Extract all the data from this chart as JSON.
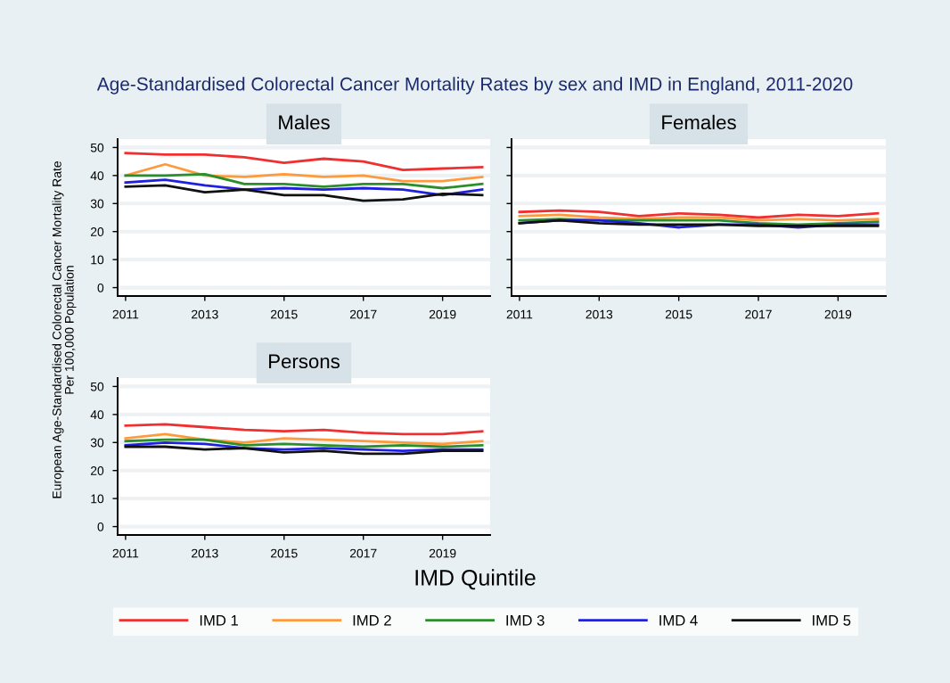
{
  "chart_data": [
    {
      "type": "line",
      "title": "Age-Standardised Colorectal Cancer Mortality Rates by sex and IMD in England, 2011-2020",
      "subtitle": "Males",
      "xlabel": "IMD Quintile",
      "ylabel": "European Age-Standardised Colorectal Cancer Mortality Rate\nPer 100,000 Population",
      "x": [
        2011,
        2012,
        2013,
        2014,
        2015,
        2016,
        2017,
        2018,
        2019,
        2020
      ],
      "xlim": [
        2010.8,
        2020.2
      ],
      "xticks": [
        2011,
        2013,
        2015,
        2017,
        2019
      ],
      "ylim": [
        -3,
        53
      ],
      "yticks": [
        0,
        10,
        20,
        30,
        40,
        50
      ],
      "grid": "y",
      "legend": "bottom",
      "series": [
        {
          "name": "IMD 1",
          "color": "#f03030",
          "values": [
            48,
            47.5,
            47.5,
            46.5,
            44.5,
            46,
            45,
            42,
            42.5,
            43
          ]
        },
        {
          "name": "IMD 2",
          "color": "#ff9a3c",
          "values": [
            40,
            44,
            40,
            39.5,
            40.5,
            39.5,
            40,
            38,
            38,
            39.5
          ]
        },
        {
          "name": "IMD 3",
          "color": "#2a8f2a",
          "values": [
            40,
            40,
            40.5,
            37,
            37,
            36,
            37,
            37,
            35.5,
            37
          ]
        },
        {
          "name": "IMD 4",
          "color": "#2020e0",
          "values": [
            37.5,
            38.5,
            36.5,
            35,
            35.5,
            35,
            35.5,
            35,
            33,
            35
          ]
        },
        {
          "name": "IMD 5",
          "color": "#111111",
          "values": [
            36,
            36.5,
            34,
            35,
            33,
            33,
            31,
            31.5,
            33.5,
            33
          ]
        }
      ]
    },
    {
      "type": "line",
      "subtitle": "Females",
      "x": [
        2011,
        2012,
        2013,
        2014,
        2015,
        2016,
        2017,
        2018,
        2019,
        2020
      ],
      "xlim": [
        2010.8,
        2020.2
      ],
      "xticks": [
        2011,
        2013,
        2015,
        2017,
        2019
      ],
      "ylim": [
        -3,
        53
      ],
      "yticks": [
        0,
        10,
        20,
        30,
        40,
        50
      ],
      "grid": "y",
      "tick_labels": "x",
      "series": [
        {
          "color": "#f03030",
          "values": [
            27,
            27.5,
            27,
            25.5,
            26.5,
            26,
            25,
            26,
            25.5,
            26.5
          ]
        },
        {
          "color": "#ff9a3c",
          "values": [
            25.5,
            26,
            25,
            24.5,
            25,
            25,
            24,
            24.5,
            24,
            24.5
          ]
        },
        {
          "color": "#2a8f2a",
          "values": [
            24,
            24.5,
            24,
            24,
            24,
            24,
            23,
            22.5,
            23,
            23.5
          ]
        },
        {
          "color": "#2020e0",
          "values": [
            23,
            24,
            24,
            23,
            21.5,
            22.5,
            22.5,
            21.5,
            22.5,
            22.5
          ]
        },
        {
          "color": "#111111",
          "values": [
            23,
            24,
            23,
            22.5,
            22.5,
            22.5,
            22,
            22,
            22,
            22
          ]
        }
      ]
    },
    {
      "type": "line",
      "subtitle": "Persons",
      "x": [
        2011,
        2012,
        2013,
        2014,
        2015,
        2016,
        2017,
        2018,
        2019,
        2020
      ],
      "xlim": [
        2010.8,
        2020.2
      ],
      "xticks": [
        2011,
        2013,
        2015,
        2017,
        2019
      ],
      "ylim": [
        -3,
        53
      ],
      "yticks": [
        0,
        10,
        20,
        30,
        40,
        50
      ],
      "grid": "y",
      "series": [
        {
          "color": "#f03030",
          "values": [
            36,
            36.5,
            35.5,
            34.5,
            34,
            34.5,
            33.5,
            33,
            33,
            34
          ]
        },
        {
          "color": "#ff9a3c",
          "values": [
            31.5,
            33,
            31,
            30,
            31.5,
            31,
            30.5,
            30,
            29.5,
            30.5
          ]
        },
        {
          "color": "#2a8f2a",
          "values": [
            30.5,
            31,
            31,
            29,
            29.5,
            29,
            28.5,
            29,
            28.5,
            29
          ]
        },
        {
          "color": "#2020e0",
          "values": [
            29,
            30,
            29.5,
            28,
            27.5,
            28,
            27.5,
            27,
            27.5,
            27.5
          ]
        },
        {
          "color": "#111111",
          "values": [
            28.5,
            28.5,
            27.5,
            28,
            26.5,
            27,
            26,
            26,
            27,
            27
          ]
        }
      ]
    }
  ]
}
